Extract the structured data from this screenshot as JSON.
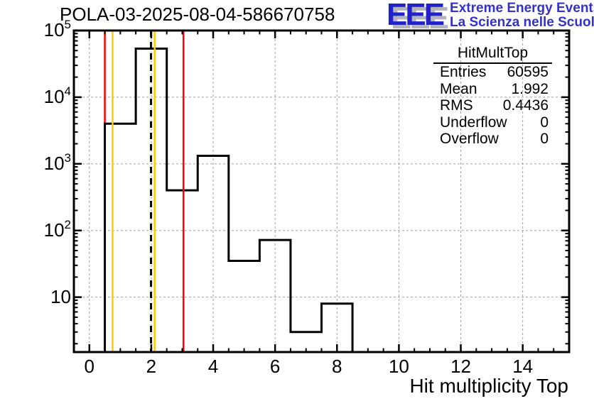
{
  "header": {
    "title": "POLA-03-2025-08-04-586670758",
    "logo": {
      "acronym": "EEE",
      "line1": "Extreme Energy Events",
      "line2": "La Scienza nelle Scuole",
      "color": "#2222cc"
    }
  },
  "stats": {
    "title": "HitMultTop",
    "rows": [
      {
        "label": "Entries",
        "value": "60595"
      },
      {
        "label": "Mean",
        "value": "1.992"
      },
      {
        "label": "RMS",
        "value": "0.4436"
      },
      {
        "label": "Underflow",
        "value": "0"
      },
      {
        "label": "Overflow",
        "value": "0"
      }
    ]
  },
  "chart_data": {
    "type": "bar",
    "title": "POLA-03-2025-08-04-586670758",
    "xlabel": "Hit multiplicity Top",
    "ylabel": "",
    "y_scale": "log",
    "grid": true,
    "x_range": [
      -0.5,
      15.5
    ],
    "y_range": [
      1.5,
      100000
    ],
    "bin_centers": [
      0,
      1,
      2,
      3,
      4,
      5,
      6,
      7,
      8,
      9,
      10,
      11,
      12,
      13,
      14,
      15
    ],
    "values": [
      0,
      4000,
      53500,
      400,
      1320,
      35,
      72,
      3,
      8,
      0,
      0,
      0,
      0,
      0,
      0,
      0
    ],
    "x_major_ticks": [
      0,
      2,
      4,
      6,
      8,
      10,
      12,
      14
    ],
    "x_minor_step": 0.5,
    "y_tick_labels": [
      {
        "value": 10,
        "exp": ""
      },
      {
        "value": 100,
        "exp": "2"
      },
      {
        "value": 1000,
        "exp": "3"
      },
      {
        "value": 10000,
        "exp": "4"
      },
      {
        "value": 100000,
        "exp": "5"
      }
    ],
    "marker_lines": [
      {
        "x": 0.5,
        "color": "#ff0000",
        "style": "solid",
        "layer": "below"
      },
      {
        "x": 0.75,
        "color": "#ffcc00",
        "style": "solid",
        "layer": "above"
      },
      {
        "x": 1.992,
        "color": "#000000",
        "style": "dashed",
        "layer": "above"
      },
      {
        "x": 2.11,
        "color": "#ffcc00",
        "style": "solid",
        "layer": "above"
      },
      {
        "x": 3.04,
        "color": "#ff0000",
        "style": "solid",
        "layer": "above"
      }
    ],
    "colors": {
      "hist": "#000000",
      "grid": "#a0a0a0",
      "frame": "#000000"
    }
  }
}
